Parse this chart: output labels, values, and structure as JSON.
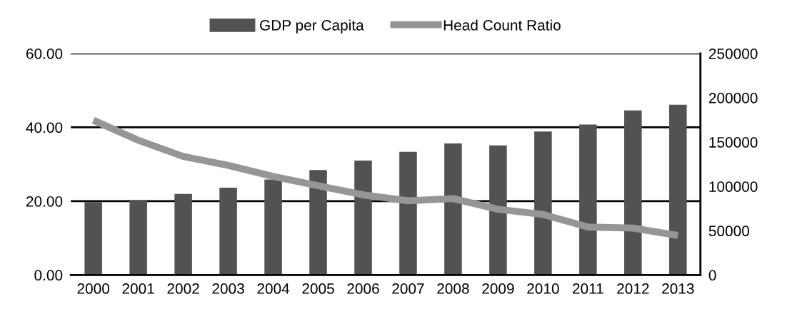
{
  "chart_data": {
    "type": "bar",
    "categories": [
      "2000",
      "2001",
      "2002",
      "2003",
      "2004",
      "2005",
      "2006",
      "2007",
      "2008",
      "2009",
      "2010",
      "2011",
      "2012",
      "2013"
    ],
    "series": [
      {
        "name": "GDP per Capita",
        "color": "#525252",
        "axis": "y2",
        "values": [
          82300,
          84400,
          91400,
          98600,
          107700,
          118500,
          129200,
          139100,
          148500,
          146300,
          161900,
          169900,
          185700,
          192100
        ]
      },
      {
        "name": "Head Count Ratio",
        "type": "line",
        "color": "#969696",
        "values": [
          41.9,
          36.5,
          32.1,
          29.7,
          26.7,
          24.2,
          21.7,
          20.1,
          20.7,
          17.8,
          16.4,
          13.0,
          12.7,
          10.7
        ]
      }
    ],
    "ylim": [
      0,
      60
    ],
    "yticks": [
      {
        "value": 0,
        "label": "0.00"
      },
      {
        "value": 20,
        "label": "20.00"
      },
      {
        "value": 40,
        "label": "40.00"
      },
      {
        "value": 60,
        "label": "60.00"
      }
    ],
    "y2lim": [
      0,
      250000
    ],
    "y2ticks": [
      0,
      50000,
      100000,
      150000,
      200000,
      250000
    ],
    "grid": "y",
    "legend": "top"
  }
}
